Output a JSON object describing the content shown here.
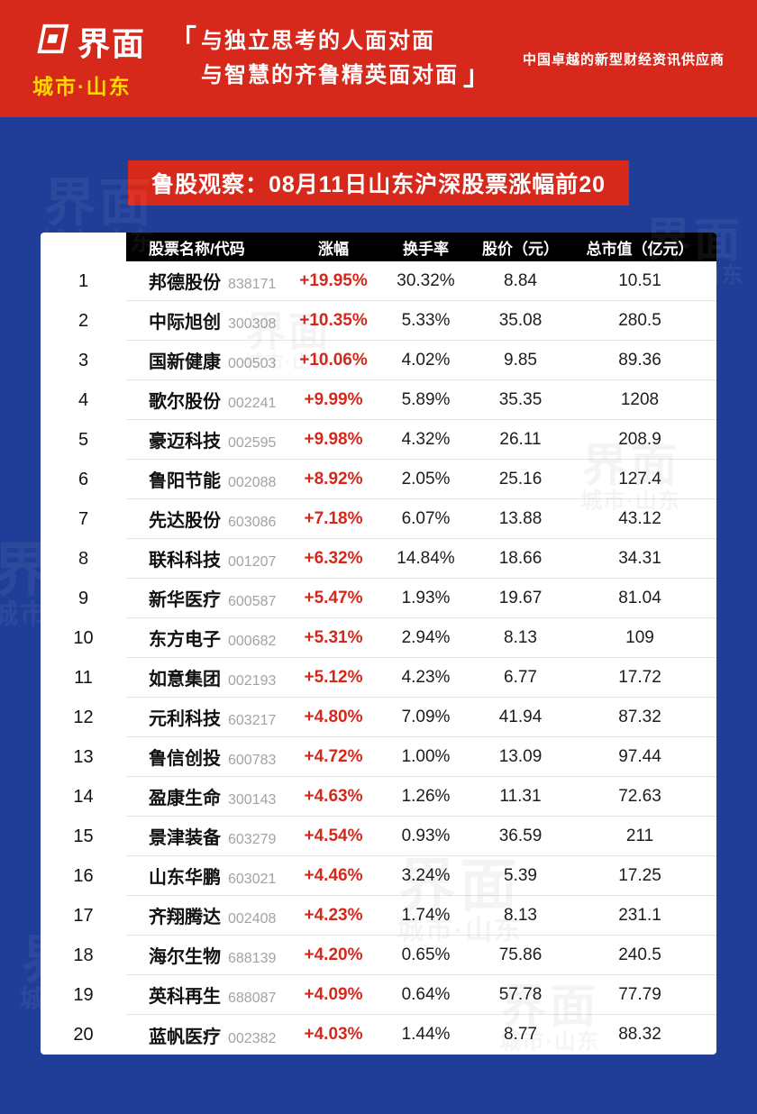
{
  "banner": {
    "logo_text": "界面",
    "logo_sub": "城市·山东",
    "bracket_open": "「",
    "bracket_close": "」",
    "tagline_line1": "与独立思考的人面对面",
    "tagline_line2": "与智慧的齐鲁精英面对面",
    "slogan": "中国卓越的新型财经资讯供应商"
  },
  "watermark": {
    "line1": "界面",
    "line2": "城市·山东"
  },
  "colors": {
    "banner_red": "#d7281c",
    "background_blue": "#203e97",
    "gain_red": "#d5281c",
    "header_black": "#000000",
    "logo_yellow": "#ffd800"
  },
  "chart_data": {
    "type": "table",
    "title": "鲁股观察：08月11日山东沪深股票涨幅前20",
    "columns": [
      "股票名称/代码",
      "涨幅",
      "换手率",
      "股价（元）",
      "总市值（亿元）"
    ],
    "rows": [
      {
        "rank": "1",
        "name": "邦德股份",
        "code": "838171",
        "change": "+19.95%",
        "turnover": "30.32%",
        "price": "8.84",
        "cap": "10.51"
      },
      {
        "rank": "2",
        "name": "中际旭创",
        "code": "300308",
        "change": "+10.35%",
        "turnover": "5.33%",
        "price": "35.08",
        "cap": "280.5"
      },
      {
        "rank": "3",
        "name": "国新健康",
        "code": "000503",
        "change": "+10.06%",
        "turnover": "4.02%",
        "price": "9.85",
        "cap": "89.36"
      },
      {
        "rank": "4",
        "name": "歌尔股份",
        "code": "002241",
        "change": "+9.99%",
        "turnover": "5.89%",
        "price": "35.35",
        "cap": "1208"
      },
      {
        "rank": "5",
        "name": "豪迈科技",
        "code": "002595",
        "change": "+9.98%",
        "turnover": "4.32%",
        "price": "26.11",
        "cap": "208.9"
      },
      {
        "rank": "6",
        "name": "鲁阳节能",
        "code": "002088",
        "change": "+8.92%",
        "turnover": "2.05%",
        "price": "25.16",
        "cap": "127.4"
      },
      {
        "rank": "7",
        "name": "先达股份",
        "code": "603086",
        "change": "+7.18%",
        "turnover": "6.07%",
        "price": "13.88",
        "cap": "43.12"
      },
      {
        "rank": "8",
        "name": "联科科技",
        "code": "001207",
        "change": "+6.32%",
        "turnover": "14.84%",
        "price": "18.66",
        "cap": "34.31"
      },
      {
        "rank": "9",
        "name": "新华医疗",
        "code": "600587",
        "change": "+5.47%",
        "turnover": "1.93%",
        "price": "19.67",
        "cap": "81.04"
      },
      {
        "rank": "10",
        "name": "东方电子",
        "code": "000682",
        "change": "+5.31%",
        "turnover": "2.94%",
        "price": "8.13",
        "cap": "109"
      },
      {
        "rank": "11",
        "name": "如意集团",
        "code": "002193",
        "change": "+5.12%",
        "turnover": "4.23%",
        "price": "6.77",
        "cap": "17.72"
      },
      {
        "rank": "12",
        "name": "元利科技",
        "code": "603217",
        "change": "+4.80%",
        "turnover": "7.09%",
        "price": "41.94",
        "cap": "87.32"
      },
      {
        "rank": "13",
        "name": "鲁信创投",
        "code": "600783",
        "change": "+4.72%",
        "turnover": "1.00%",
        "price": "13.09",
        "cap": "97.44"
      },
      {
        "rank": "14",
        "name": "盈康生命",
        "code": "300143",
        "change": "+4.63%",
        "turnover": "1.26%",
        "price": "11.31",
        "cap": "72.63"
      },
      {
        "rank": "15",
        "name": "景津装备",
        "code": "603279",
        "change": "+4.54%",
        "turnover": "0.93%",
        "price": "36.59",
        "cap": "211"
      },
      {
        "rank": "16",
        "name": "山东华鹏",
        "code": "603021",
        "change": "+4.46%",
        "turnover": "3.24%",
        "price": "5.39",
        "cap": "17.25"
      },
      {
        "rank": "17",
        "name": "齐翔腾达",
        "code": "002408",
        "change": "+4.23%",
        "turnover": "1.74%",
        "price": "8.13",
        "cap": "231.1"
      },
      {
        "rank": "18",
        "name": "海尔生物",
        "code": "688139",
        "change": "+4.20%",
        "turnover": "0.65%",
        "price": "75.86",
        "cap": "240.5"
      },
      {
        "rank": "19",
        "name": "英科再生",
        "code": "688087",
        "change": "+4.09%",
        "turnover": "0.64%",
        "price": "57.78",
        "cap": "77.79"
      },
      {
        "rank": "20",
        "name": "蓝帆医疗",
        "code": "002382",
        "change": "+4.03%",
        "turnover": "1.44%",
        "price": "8.77",
        "cap": "88.32"
      }
    ]
  }
}
